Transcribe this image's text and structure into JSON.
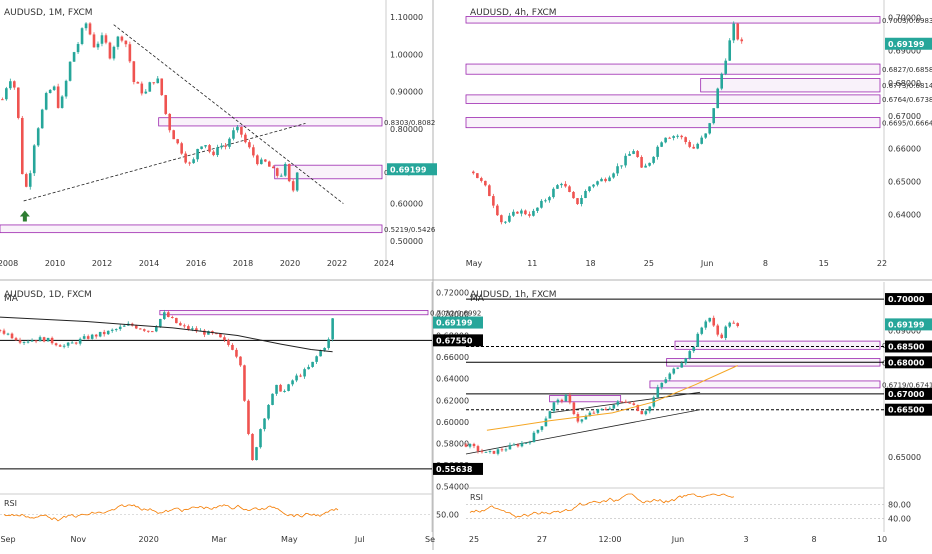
{
  "colors": {
    "up": "#26a69a",
    "down": "#ef5350",
    "zone_stroke": "#9c27b0",
    "zone_fill": "#f3e5f5",
    "price_tag": "#26a69a",
    "ma_line": "#222222",
    "ma_orange": "#f5a623",
    "rsi_line": "#f57c00",
    "level_tag": "#000000",
    "text": "#333333",
    "grid_sep": "#b0b0b0",
    "arrow": "#2e7d32"
  },
  "chart_data": [
    {
      "type": "candlestick",
      "title": "AUDUSD, 1M, FXCM",
      "x_ticks": [
        "2008",
        "2010",
        "2012",
        "2014",
        "2016",
        "2018",
        "2020",
        "2022",
        "2024"
      ],
      "x_range": [
        2007.9,
        2024.2
      ],
      "ylim": [
        0.47,
        1.13
      ],
      "y_ticks": [
        "0.50000",
        "0.60000",
        "0.70000",
        "0.80000",
        "0.90000",
        "1.00000",
        "1.10000"
      ],
      "y_tick_values": [
        0.5,
        0.6,
        0.7,
        0.8,
        0.9,
        1.0,
        1.1
      ],
      "price_tag": "0.69199",
      "price": 0.69199,
      "closes": [
        [
          2008.0,
          0.88
        ],
        [
          2008.3,
          0.94
        ],
        [
          2008.6,
          0.9
        ],
        [
          2008.8,
          0.7
        ],
        [
          2008.95,
          0.64
        ],
        [
          2009.1,
          0.65
        ],
        [
          2009.3,
          0.75
        ],
        [
          2009.6,
          0.83
        ],
        [
          2009.9,
          0.9
        ],
        [
          2010.2,
          0.91
        ],
        [
          2010.4,
          0.85
        ],
        [
          2010.6,
          0.9
        ],
        [
          2010.9,
          0.99
        ],
        [
          2011.2,
          1.03
        ],
        [
          2011.4,
          1.07
        ],
        [
          2011.6,
          1.09
        ],
        [
          2011.8,
          1.02
        ],
        [
          2012.0,
          1.03
        ],
        [
          2012.3,
          1.05
        ],
        [
          2012.5,
          0.99
        ],
        [
          2012.8,
          1.04
        ],
        [
          2013.0,
          1.05
        ],
        [
          2013.3,
          1.02
        ],
        [
          2013.5,
          0.93
        ],
        [
          2013.8,
          0.91
        ],
        [
          2014.0,
          0.89
        ],
        [
          2014.3,
          0.93
        ],
        [
          2014.6,
          0.93
        ],
        [
          2014.8,
          0.87
        ],
        [
          2015.0,
          0.81
        ],
        [
          2015.3,
          0.77
        ],
        [
          2015.5,
          0.75
        ],
        [
          2015.8,
          0.71
        ],
        [
          2016.0,
          0.7
        ],
        [
          2016.3,
          0.76
        ],
        [
          2016.6,
          0.76
        ],
        [
          2016.9,
          0.72
        ],
        [
          2017.1,
          0.76
        ],
        [
          2017.4,
          0.75
        ],
        [
          2017.7,
          0.79
        ],
        [
          2018.0,
          0.8
        ],
        [
          2018.2,
          0.77
        ],
        [
          2018.5,
          0.74
        ],
        [
          2018.8,
          0.71
        ],
        [
          2019.1,
          0.71
        ],
        [
          2019.4,
          0.69
        ],
        [
          2019.7,
          0.67
        ],
        [
          2019.95,
          0.7
        ],
        [
          2020.1,
          0.66
        ],
        [
          2020.2,
          0.62
        ],
        [
          2020.35,
          0.65
        ],
        [
          2020.45,
          0.69
        ]
      ],
      "zones": [
        {
          "label": "0.8303/0.8082",
          "hi": 0.8303,
          "lo": 0.8082,
          "x0": 2014.6
        },
        {
          "label": "0.7029/0.6664",
          "hi": 0.7029,
          "lo": 0.6664,
          "x0": 2019.5
        },
        {
          "label": "0.5219/0.5426",
          "hi": 0.5426,
          "lo": 0.5219,
          "x0": 2007.9
        }
      ],
      "trendlines": [
        {
          "from": [
            2008.9,
            0.607
          ],
          "to": [
            2020.8,
            0.815
          ],
          "style": "dashed"
        },
        {
          "from": [
            2012.7,
            1.08
          ],
          "to": [
            2022.4,
            0.6
          ],
          "style": "dashed"
        }
      ],
      "markers": [
        {
          "type": "arrow-up",
          "at": [
            2008.95,
            0.6
          ]
        }
      ]
    },
    {
      "type": "candlestick",
      "title": "AUDUSD, 4h, FXCM",
      "x_ticks": [
        "May",
        "11",
        "18",
        "25",
        "Jun",
        "8",
        "15",
        "22"
      ],
      "x_range": [
        0,
        57
      ],
      "ylim": [
        0.6285,
        0.7035
      ],
      "y_ticks": [
        "0.64000",
        "0.65000",
        "0.66000",
        "0.67000",
        "0.68000",
        "0.69000",
        "0.70000"
      ],
      "y_tick_values": [
        0.64,
        0.65,
        0.66,
        0.67,
        0.68,
        0.69,
        0.7
      ],
      "price_tag": "0.69199",
      "price": 0.69199,
      "closes": [
        [
          1,
          0.653
        ],
        [
          3,
          0.647
        ],
        [
          4,
          0.642
        ],
        [
          5,
          0.637
        ],
        [
          7,
          0.641
        ],
        [
          9,
          0.64
        ],
        [
          11,
          0.645
        ],
        [
          13,
          0.65
        ],
        [
          15,
          0.643
        ],
        [
          17,
          0.649
        ],
        [
          19,
          0.651
        ],
        [
          21,
          0.655
        ],
        [
          23,
          0.66
        ],
        [
          24,
          0.653
        ],
        [
          25,
          0.656
        ],
        [
          27,
          0.664
        ],
        [
          29,
          0.664
        ],
        [
          31,
          0.66
        ],
        [
          33,
          0.665
        ],
        [
          34,
          0.675
        ],
        [
          35,
          0.684
        ],
        [
          36,
          0.693
        ],
        [
          36.6,
          0.698
        ],
        [
          37,
          0.694
        ],
        [
          37.6,
          0.692
        ]
      ],
      "zones": [
        {
          "label": "0.7003/0.6983",
          "hi": 0.7003,
          "lo": 0.6983,
          "x0": 0
        },
        {
          "label": "0.6827/0.6858",
          "hi": 0.6858,
          "lo": 0.6827,
          "x0": 0
        },
        {
          "label": "0.6773/0.6814",
          "hi": 0.6814,
          "lo": 0.6773,
          "x0": 32
        },
        {
          "label": "0.6764/0.6738",
          "hi": 0.6764,
          "lo": 0.6738,
          "x0": 0
        },
        {
          "label": "0.6695/0.6664",
          "hi": 0.6695,
          "lo": 0.6664,
          "x0": 0
        }
      ]
    },
    {
      "type": "candlestick",
      "title": "AUDUSD, 1D, FXCM",
      "indicator": "MA",
      "x_ticks": [
        "Sep",
        "Nov",
        "2020",
        "Mar",
        "May",
        "Jul",
        "Se"
      ],
      "x_range": [
        0,
        100
      ],
      "ylim": [
        0.535,
        0.724
      ],
      "y_ticks": [
        "0.54000",
        "0.56000",
        "0.58000",
        "0.60000",
        "0.62000",
        "0.64000",
        "0.66000",
        "0.68000",
        "0.70000",
        "0.72000"
      ],
      "y_tick_values": [
        0.54,
        0.56,
        0.58,
        0.6,
        0.62,
        0.64,
        0.66,
        0.68,
        0.7,
        0.72
      ],
      "price_tag": "0.69199",
      "price": 0.69199,
      "levels": [
        {
          "label": "0.67550",
          "value": 0.6755
        },
        {
          "label": "0.55638",
          "value": 0.55638
        }
      ],
      "closes": [
        [
          0,
          0.685
        ],
        [
          5,
          0.675
        ],
        [
          10,
          0.677
        ],
        [
          15,
          0.67
        ],
        [
          20,
          0.678
        ],
        [
          25,
          0.683
        ],
        [
          30,
          0.69
        ],
        [
          35,
          0.684
        ],
        [
          38,
          0.7
        ],
        [
          42,
          0.688
        ],
        [
          46,
          0.684
        ],
        [
          50,
          0.68
        ],
        [
          54,
          0.668
        ],
        [
          56,
          0.652
        ],
        [
          57,
          0.6
        ],
        [
          58.5,
          0.562
        ],
        [
          60,
          0.59
        ],
        [
          62,
          0.615
        ],
        [
          64,
          0.632
        ],
        [
          66,
          0.628
        ],
        [
          68,
          0.64
        ],
        [
          70,
          0.645
        ],
        [
          72,
          0.652
        ],
        [
          74,
          0.665
        ],
        [
          76,
          0.674
        ],
        [
          77,
          0.695
        ]
      ],
      "ma": [
        [
          0,
          0.697
        ],
        [
          20,
          0.693
        ],
        [
          40,
          0.687
        ],
        [
          55,
          0.68
        ],
        [
          65,
          0.672
        ],
        [
          72,
          0.667
        ],
        [
          77,
          0.665
        ]
      ],
      "zones": [
        {
          "label": "0.7032/0.6992",
          "hi": 0.7032,
          "lo": 0.6992,
          "x0": 37
        }
      ],
      "rsi": {
        "label": "RSI",
        "y_ticks": [
          "50.00"
        ]
      }
    },
    {
      "type": "candlestick",
      "title": "AUDUSD, 1h, FXCM",
      "indicator": "MA",
      "x_ticks": [
        "25",
        "27",
        "12:00",
        "Jun",
        "3",
        "8",
        "10"
      ],
      "x_range": [
        0,
        100
      ],
      "ylim": [
        0.6415,
        0.7035
      ],
      "y_ticks": [
        "0.65000",
        "0.66500",
        "0.67000",
        "0.68000",
        "0.68500",
        "0.69000",
        "0.70000"
      ],
      "y_tick_values": [
        0.65,
        0.665,
        0.67,
        0.68,
        0.685,
        0.69,
        0.7
      ],
      "price_tag": "0.69199",
      "price": 0.69199,
      "levels": [
        {
          "label": "0.70000",
          "value": 0.7,
          "style": "solid"
        },
        {
          "label": "0.68500",
          "value": 0.685,
          "style": "dashed"
        },
        {
          "label": "0.68000",
          "value": 0.68,
          "style": "solid"
        },
        {
          "label": "0.67000",
          "value": 0.67,
          "style": "solid"
        },
        {
          "label": "0.66500",
          "value": 0.665,
          "style": "dashed"
        }
      ],
      "closes": [
        [
          0,
          0.654
        ],
        [
          5,
          0.651
        ],
        [
          10,
          0.653
        ],
        [
          15,
          0.655
        ],
        [
          18,
          0.66
        ],
        [
          21,
          0.667
        ],
        [
          24,
          0.669
        ],
        [
          27,
          0.661
        ],
        [
          30,
          0.664
        ],
        [
          33,
          0.665
        ],
        [
          36,
          0.667
        ],
        [
          39,
          0.668
        ],
        [
          42,
          0.664
        ],
        [
          44,
          0.666
        ],
        [
          46,
          0.672
        ],
        [
          48,
          0.675
        ],
        [
          50,
          0.678
        ],
        [
          52,
          0.681
        ],
        [
          54,
          0.684
        ],
        [
          56,
          0.69
        ],
        [
          58,
          0.695
        ],
        [
          60,
          0.689
        ],
        [
          61,
          0.688
        ],
        [
          63,
          0.693
        ],
        [
          65,
          0.691
        ]
      ],
      "ma": [
        [
          5,
          0.6585
        ],
        [
          20,
          0.6615
        ],
        [
          35,
          0.664
        ],
        [
          45,
          0.6675
        ],
        [
          55,
          0.673
        ],
        [
          65,
          0.679
        ]
      ],
      "zones": [
        {
          "label": "0.6841/0.6867",
          "hi": 0.6867,
          "lo": 0.6841,
          "x0": 50
        },
        {
          "label": "0.6788/0.6812",
          "hi": 0.6812,
          "lo": 0.6788,
          "x0": 48
        },
        {
          "label": "0.6719/0.6741",
          "hi": 0.6741,
          "lo": 0.6719,
          "x0": 44
        },
        {
          "label": "",
          "hi": 0.6695,
          "lo": 0.6675,
          "x0": 20,
          "x1": 37
        }
      ],
      "trendlines": [
        {
          "from": [
            0,
            0.651
          ],
          "to": [
            56,
            0.665
          ]
        },
        {
          "from": [
            20,
            0.664
          ],
          "to": [
            56,
            0.6705
          ]
        }
      ],
      "rsi": {
        "label": "RSI",
        "y_ticks": [
          "80.00",
          "40.00"
        ]
      }
    }
  ]
}
